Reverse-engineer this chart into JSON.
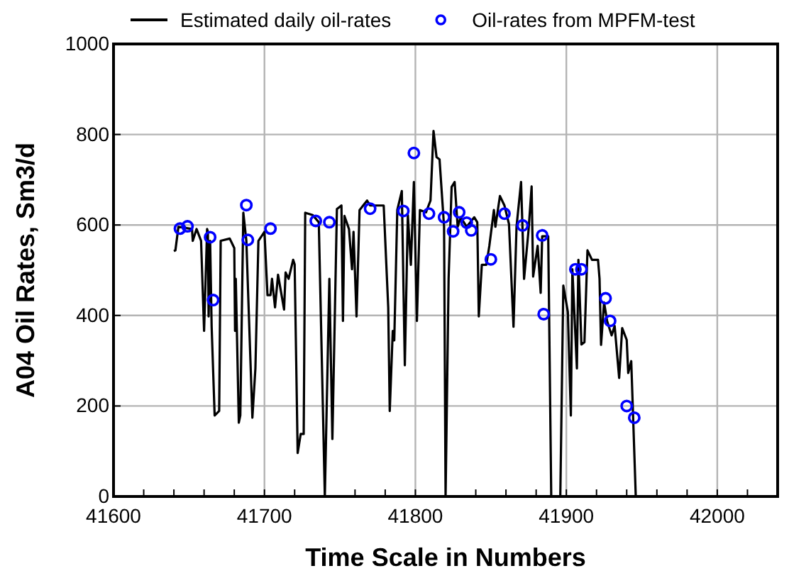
{
  "chart_data": {
    "type": "line",
    "xlabel": "Time Scale in Numbers",
    "ylabel": "A04 Oil Rates, Sm3/d",
    "xlim": [
      41600,
      42040
    ],
    "xticks": [
      41600,
      {
        "value": 41620,
        "label": null
      },
      {
        "value": 41640,
        "label": null
      },
      {
        "value": 41660,
        "label": null
      },
      {
        "value": 41680,
        "label": null
      },
      41700,
      {
        "value": 41720,
        "label": null
      },
      {
        "value": 41740,
        "label": null
      },
      {
        "value": 41760,
        "label": null
      },
      {
        "value": 41780,
        "label": null
      },
      41800,
      {
        "value": 41820,
        "label": null
      },
      {
        "value": 41840,
        "label": null
      },
      {
        "value": 41860,
        "label": null
      },
      {
        "value": 41880,
        "label": null
      },
      41900,
      {
        "value": 41920,
        "label": null
      },
      {
        "value": 41940,
        "label": null
      },
      {
        "value": 41960,
        "label": null
      },
      {
        "value": 41980,
        "label": null
      },
      42000,
      {
        "value": 42020,
        "label": null
      }
    ],
    "ylim": [
      0,
      1000
    ],
    "yticks": [
      0,
      200,
      400,
      600,
      800,
      1000
    ],
    "grid": true,
    "legend": "top",
    "series": [
      {
        "name": "Estimated daily oil-rates",
        "color": "#000000",
        "marker": "none",
        "line_style": "solid",
        "x": [
          41640,
          41641,
          41643,
          41652,
          41652.5,
          41655,
          41658,
          41660,
          41662,
          41662.5,
          41663,
          41664,
          41665,
          41667,
          41670,
          41671,
          41677,
          41680,
          41680.5,
          41681,
          41683,
          41684,
          41686,
          41688,
          41692,
          41694,
          41696,
          41700,
          41702,
          41704,
          41705,
          41707,
          41709,
          41713,
          41714,
          41716,
          41719,
          41720,
          41722,
          41724,
          41726,
          41727,
          41732,
          41736,
          41740,
          41743,
          41745,
          41748,
          41751,
          41752,
          41753,
          41756,
          41758,
          41759,
          41761,
          41763,
          41768,
          41770,
          41779,
          41782,
          41783,
          41785,
          41786,
          41788,
          41791,
          41793,
          41795,
          41797,
          41799,
          41801,
          41803,
          41807,
          41810,
          41812,
          41814,
          41816,
          41819,
          41820,
          41822,
          41824,
          41826,
          41828,
          41830,
          41834,
          41839,
          41841,
          41842,
          41844,
          41847,
          41849,
          41852,
          41853,
          41856,
          41859,
          41862,
          41865,
          41867,
          41870,
          41872,
          41875,
          41877,
          41878,
          41881,
          41883,
          41884,
          41888,
          41890,
          41896,
          41898,
          41901,
          41903,
          41904,
          41907,
          41908,
          41910,
          41912,
          41914,
          41917,
          41921,
          41922,
          41923,
          41925,
          41927,
          41930,
          41932,
          41935,
          41937,
          41940,
          41941,
          41943,
          41944,
          41946
        ],
        "values": [
          542,
          544,
          596,
          591,
          565,
          591,
          565,
          366,
          591,
          585,
          398,
          565,
          376,
          179,
          189,
          565,
          570,
          549,
          366,
          481,
          163,
          179,
          627,
          565,
          174,
          283,
          565,
          585,
          445,
          445,
          481,
          418,
          490,
          413,
          495,
          481,
          523,
          513,
          96,
          138,
          138,
          627,
          622,
          606,
          0,
          481,
          127,
          635,
          643,
          388,
          620,
          591,
          502,
          585,
          398,
          633,
          654,
          643,
          643,
          418,
          189,
          366,
          345,
          633,
          675,
          290,
          622,
          512,
          695,
          388,
          633,
          628,
          654,
          808,
          750,
          745,
          596,
          0,
          481,
          684,
          695,
          596,
          617,
          596,
          617,
          606,
          398,
          512,
          512,
          554,
          633,
          596,
          664,
          643,
          602,
          375,
          596,
          695,
          481,
          590,
          685,
          486,
          554,
          450,
          575,
          575,
          0,
          0,
          466,
          408,
          179,
          502,
          283,
          523,
          336,
          341,
          544,
          523,
          523,
          481,
          335,
          429,
          388,
          356,
          377,
          262,
          372,
          346,
          273,
          299,
          200,
          0
        ]
      },
      {
        "name": "Oil-rates from MPFM-test",
        "type": "scatter",
        "color": "#0000ff",
        "marker": "circle",
        "x": [
          41644,
          41649,
          41664,
          41666,
          41688,
          41689,
          41704,
          41734,
          41743,
          41770,
          41792,
          41799,
          41809,
          41819,
          41825,
          41829,
          41834,
          41837,
          41850,
          41859,
          41871,
          41884,
          41885,
          41906,
          41910,
          41926,
          41929,
          41940,
          41945
        ],
        "values": [
          592,
          597,
          573,
          434,
          644,
          567,
          592,
          609,
          606,
          636,
          631,
          759,
          625,
          617,
          586,
          628,
          605,
          588,
          524,
          625,
          599,
          577,
          403,
          502,
          502,
          438,
          388,
          200,
          174
        ]
      }
    ]
  }
}
